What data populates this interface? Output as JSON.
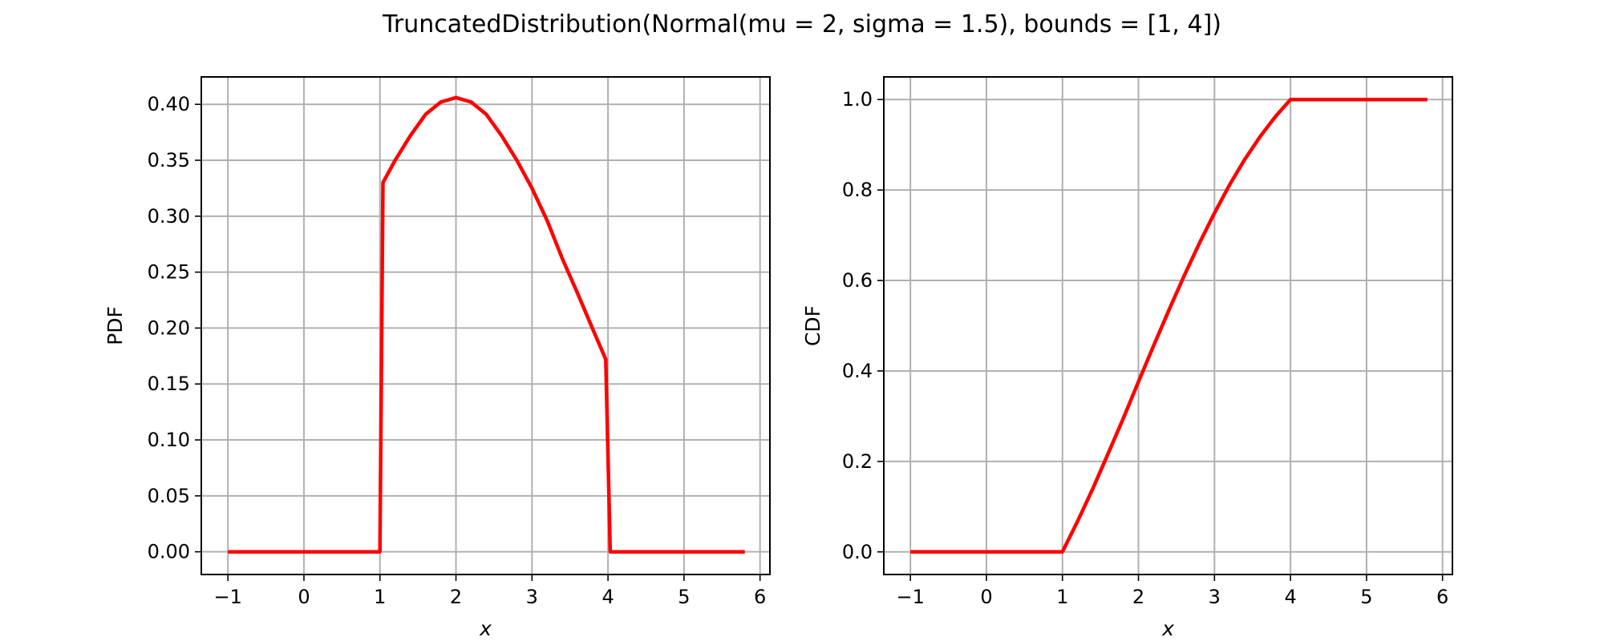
{
  "figure": {
    "title": "TruncatedDistribution(Normal(mu = 2, sigma = 1.5), bounds = [1, 4])"
  },
  "colors": {
    "series": "#ff0000",
    "grid": "#b0b0b0",
    "frame": "#000000"
  },
  "chart_data": [
    {
      "type": "line",
      "title": "",
      "xlabel": "x",
      "ylabel": "PDF",
      "xlim": [
        -1.35,
        6.13
      ],
      "ylim": [
        -0.0203,
        0.4245
      ],
      "xticks": [
        -1,
        0,
        1,
        2,
        3,
        4,
        5,
        6
      ],
      "xtick_labels": [
        "−1",
        "0",
        "1",
        "2",
        "3",
        "4",
        "5",
        "6"
      ],
      "yticks": [
        0.0,
        0.05,
        0.1,
        0.15,
        0.2,
        0.25,
        0.3,
        0.35,
        0.4
      ],
      "ytick_labels": [
        "0.00",
        "0.05",
        "0.10",
        "0.15",
        "0.20",
        "0.25",
        "0.30",
        "0.35",
        "0.40"
      ],
      "grid": true,
      "series": [
        {
          "x": [
            -1.0,
            1.0,
            1.04,
            1.2,
            1.4,
            1.6,
            1.8,
            2.0,
            2.2,
            2.4,
            2.6,
            2.8,
            3.0,
            3.2,
            3.4,
            3.6,
            3.8,
            3.97,
            4.03,
            5.8
          ],
          "y": [
            0.0,
            0.0,
            0.33,
            0.35,
            0.372,
            0.391,
            0.402,
            0.406,
            0.402,
            0.391,
            0.372,
            0.35,
            0.325,
            0.296,
            0.262,
            0.231,
            0.199,
            0.172,
            0.0,
            0.0
          ]
        }
      ]
    },
    {
      "type": "line",
      "title": "",
      "xlabel": "x",
      "ylabel": "CDF",
      "xlim": [
        -1.35,
        6.13
      ],
      "ylim": [
        -0.05,
        1.05
      ],
      "xticks": [
        -1,
        0,
        1,
        2,
        3,
        4,
        5,
        6
      ],
      "xtick_labels": [
        "−1",
        "0",
        "1",
        "2",
        "3",
        "4",
        "5",
        "6"
      ],
      "yticks": [
        0.0,
        0.2,
        0.4,
        0.6,
        0.8,
        1.0
      ],
      "ytick_labels": [
        "0.0",
        "0.2",
        "0.4",
        "0.6",
        "0.8",
        "1.0"
      ],
      "grid": true,
      "series": [
        {
          "x": [
            -1.0,
            1.0,
            1.2,
            1.4,
            1.6,
            1.8,
            2.0,
            2.2,
            2.4,
            2.6,
            2.8,
            3.0,
            3.2,
            3.4,
            3.6,
            3.8,
            4.0,
            5.8
          ],
          "y": [
            0.0,
            0.0,
            0.068,
            0.14,
            0.217,
            0.295,
            0.376,
            0.456,
            0.534,
            0.61,
            0.682,
            0.749,
            0.812,
            0.868,
            0.918,
            0.962,
            1.0,
            1.0
          ]
        }
      ]
    }
  ]
}
